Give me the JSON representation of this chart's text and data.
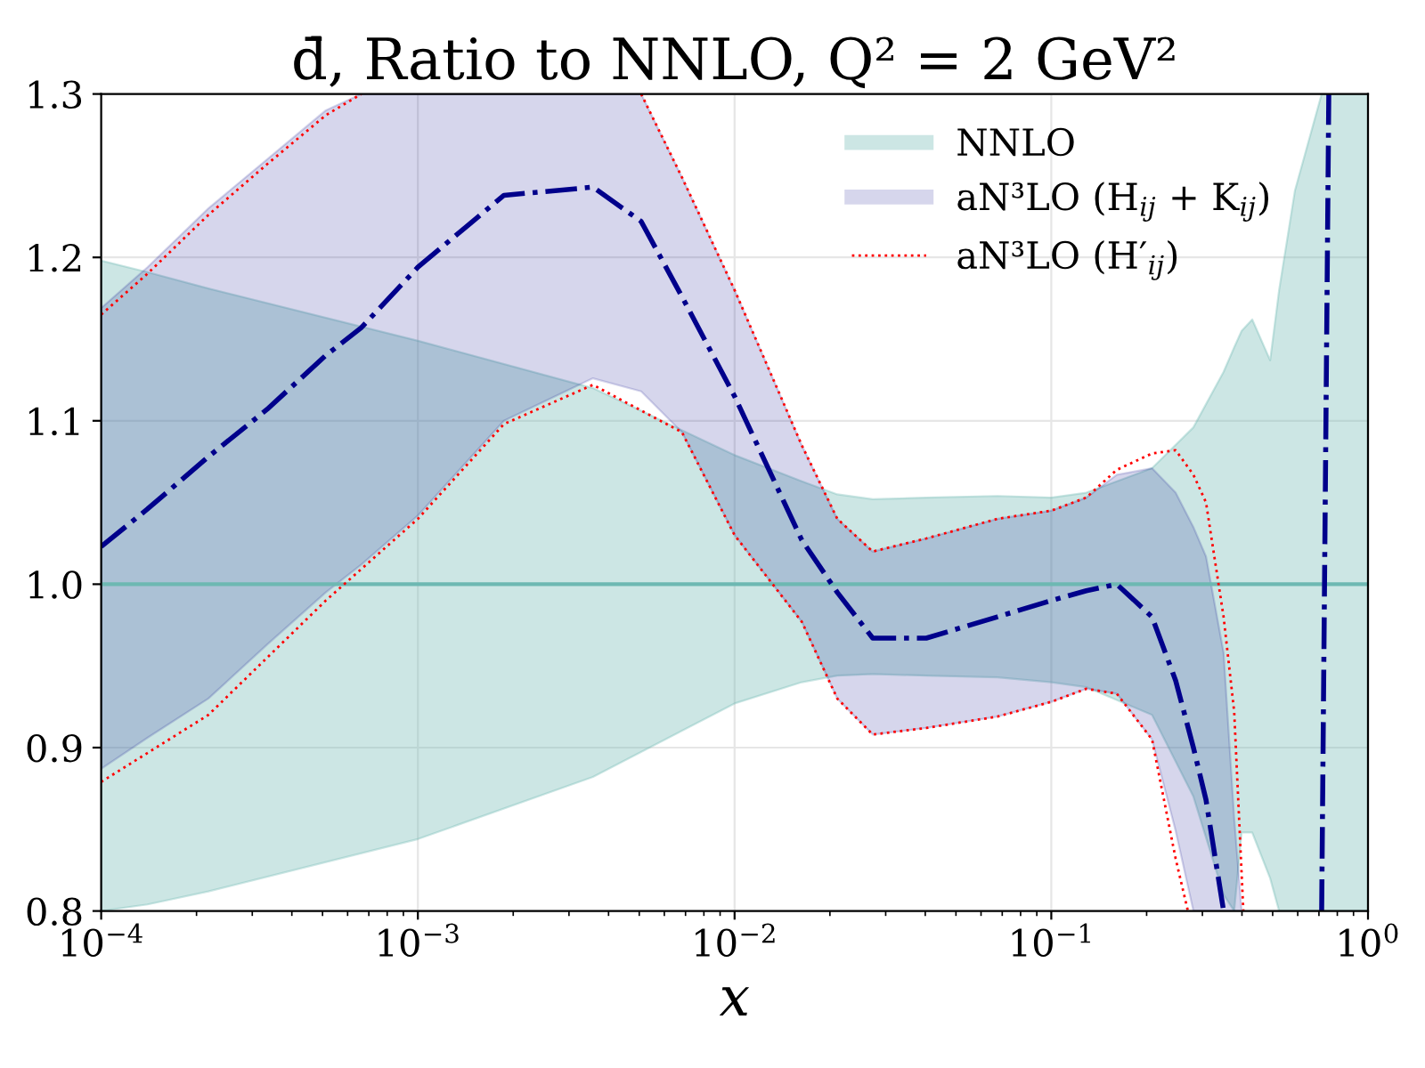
{
  "chart_data": {
    "type": "line",
    "title": "d̄, Ratio to NNLO, Q² = 2 GeV²",
    "xlabel": "x",
    "log": "x",
    "xlim": [
      0.0001,
      1
    ],
    "xticks": [
      {
        "value": 0.0001,
        "label": "10$^{−4}$"
      },
      {
        "value": 0.001,
        "label": "10$^{−3}$"
      },
      {
        "value": 0.01,
        "label": "10$^{−2}$"
      },
      {
        "value": 0.1,
        "label": "10$^{−1}$"
      },
      {
        "value": 1,
        "label": "10$^{0}$"
      }
    ],
    "ylim": [
      0.8,
      1.3
    ],
    "yticks": [
      {
        "value": 0.8,
        "label": "0.8"
      },
      {
        "value": 0.9,
        "label": "0.9"
      },
      {
        "value": 1.0,
        "label": "1.0"
      },
      {
        "value": 1.1,
        "label": "1.1"
      },
      {
        "value": 1.2,
        "label": "1.2"
      },
      {
        "value": 1.3,
        "label": "1.3"
      }
    ],
    "grid": true,
    "legend": "top right",
    "series": [
      {
        "name": "NNLO",
        "type": "line",
        "color": "#6db8b2",
        "line_style": "solid",
        "values": [
          1.0,
          1.0,
          1.0,
          1.0,
          1.0,
          1.0,
          1.0,
          1.0,
          1.0,
          1.0,
          1.0,
          1.0,
          1.0,
          1.0,
          1.0,
          1.0,
          1.0,
          1.0,
          1.0,
          1.0,
          1.0,
          1.0,
          1.0,
          1.0
        ],
        "x": [
          0.0001,
          0.00014,
          0.000218,
          0.001,
          0.00357,
          0.01,
          0.0163,
          0.0211,
          0.0273,
          0.0403,
          0.0676,
          0.1,
          0.129,
          0.208,
          0.281,
          0.35,
          0.378,
          0.399,
          0.431,
          0.491,
          0.524,
          0.588,
          0.714,
          1.0
        ],
        "upper": [
          1.198,
          1.191,
          1.181,
          1.149,
          1.12,
          1.079,
          1.063,
          1.055,
          1.052,
          1.053,
          1.054,
          1.053,
          1.056,
          1.071,
          1.096,
          1.13,
          1.145,
          1.155,
          1.162,
          1.137,
          1.18,
          1.241,
          1.3,
          1.3
        ],
        "lower": [
          0.8,
          0.804,
          0.812,
          0.844,
          0.882,
          0.927,
          0.94,
          0.944,
          0.945,
          0.944,
          0.943,
          0.94,
          0.937,
          0.92,
          0.87,
          0.81,
          0.8,
          0.848,
          0.848,
          0.82,
          0.8,
          0.8,
          0.8,
          0.8
        ]
      },
      {
        "name": "aN³LO (H$_{ij}$ + K$_{ij}$)",
        "type": "line",
        "color": "#00008b",
        "line_style": "dashdot",
        "values": [
          1.023,
          1.046,
          1.078,
          1.107,
          1.14,
          1.157,
          1.194,
          1.238,
          1.243,
          1.222,
          1.176,
          1.115,
          1.027,
          0.995,
          0.967,
          0.967,
          0.98,
          0.99,
          0.996,
          1.0,
          0.98,
          0.941,
          0.9,
          0.868,
          0.8,
          null,
          null
        ],
        "x": [
          0.0001,
          0.00014,
          0.000218,
          0.000334,
          0.000512,
          0.000663,
          0.001,
          0.00187,
          0.00357,
          0.00507,
          0.00682,
          0.01,
          0.0163,
          0.0211,
          0.0273,
          0.0403,
          0.0676,
          0.1,
          0.129,
          0.161,
          0.208,
          0.247,
          0.281,
          0.308,
          0.35,
          0.378,
          0.399
        ],
        "upper": [
          1.169,
          1.194,
          1.23,
          1.26,
          1.29,
          1.3,
          1.3,
          1.3,
          1.3,
          1.3,
          1.249,
          1.18,
          1.085,
          1.04,
          1.02,
          1.028,
          1.04,
          1.045,
          1.053,
          1.067,
          1.071,
          1.056,
          1.035,
          1.017,
          0.958,
          0.857,
          0.8
        ],
        "lower": [
          0.887,
          0.906,
          0.93,
          0.963,
          0.995,
          1.012,
          1.042,
          1.1,
          1.126,
          1.118,
          1.093,
          1.03,
          0.977,
          0.93,
          0.908,
          0.912,
          0.919,
          0.928,
          0.936,
          0.933,
          0.905,
          0.849,
          0.8,
          0.8,
          0.8,
          0.8,
          0.8
        ]
      },
      {
        "color": "#00008b",
        "line_style": "dashdot",
        "x": [
          0.714,
          0.752
        ],
        "values": [
          0.8,
          1.3
        ]
      },
      {
        "name": "aN³LO (H′$_{ij}$)",
        "color": "#ff0000",
        "line_style": "dotted",
        "x": [
          0.0001,
          0.00014,
          0.000218,
          0.000334,
          0.000512,
          0.000663,
          0.001,
          0.00507,
          0.00682,
          0.01,
          0.0163,
          0.0211,
          0.0273,
          0.0403,
          0.0676,
          0.1,
          0.129,
          0.161,
          0.208,
          0.247,
          0.281,
          0.308,
          0.35,
          0.378,
          0.404
        ],
        "values": [
          1.165,
          1.19,
          1.226,
          1.257,
          1.287,
          1.3,
          null,
          1.3,
          1.249,
          1.18,
          1.085,
          1.04,
          1.02,
          1.028,
          1.04,
          1.045,
          1.053,
          1.07,
          1.08,
          1.082,
          1.067,
          1.05,
          0.98,
          0.922,
          0.8
        ]
      },
      {
        "color": "#ff0000",
        "line_style": "dotted",
        "x": [
          0.0001,
          0.000218,
          0.000512,
          0.001,
          0.00187,
          0.00357,
          0.00682,
          0.01,
          0.0163,
          0.0211,
          0.0273,
          0.0403,
          0.0676,
          0.1,
          0.129,
          0.161,
          0.208,
          0.247,
          0.27
        ],
        "values": [
          0.879,
          0.92,
          0.99,
          1.04,
          1.098,
          1.122,
          1.093,
          1.03,
          0.977,
          0.93,
          0.908,
          0.912,
          0.919,
          0.928,
          0.936,
          0.933,
          0.905,
          0.832,
          0.8
        ]
      }
    ]
  }
}
